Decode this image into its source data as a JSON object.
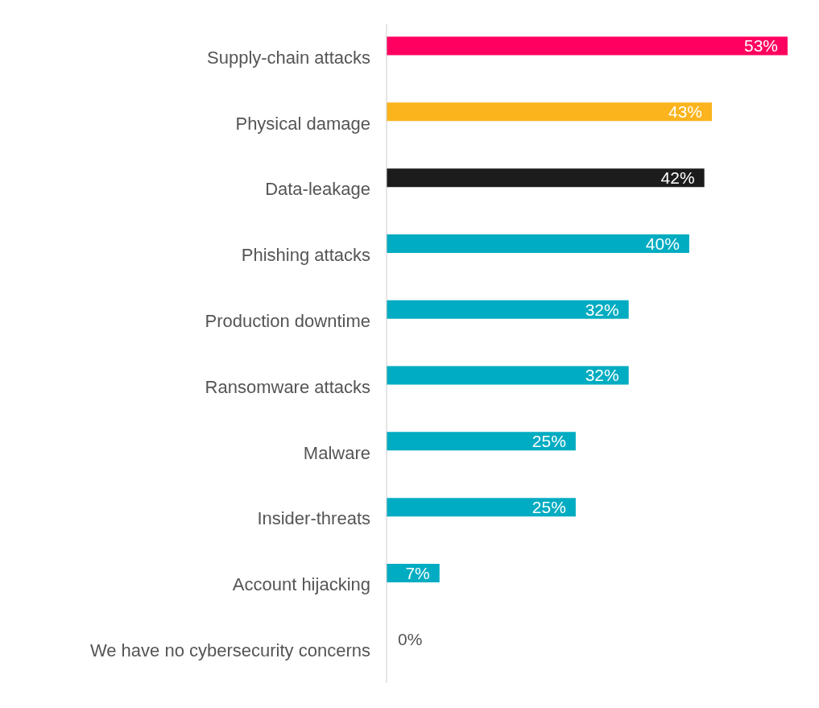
{
  "chart_data": {
    "type": "bar",
    "orientation": "horizontal",
    "categories": [
      "Supply-chain attacks",
      "Physical damage",
      "Data-leakage",
      "Phishing attacks",
      "Production downtime",
      "Ransomware attacks",
      "Malware",
      "Insider-threats",
      "Account hijacking",
      "We have no cybersecurity concerns"
    ],
    "values": [
      53,
      43,
      42,
      40,
      32,
      32,
      25,
      25,
      7,
      0
    ],
    "colors": [
      "#ff0060",
      "#fbb41e",
      "#1c1c1c",
      "#00acc1",
      "#00acc1",
      "#00acc1",
      "#00acc1",
      "#00acc1",
      "#00acc1",
      "#00acc1"
    ],
    "value_labels": [
      "53%",
      "43%",
      "42%",
      "40%",
      "32%",
      "32%",
      "25%",
      "25%",
      "7%",
      "0%"
    ],
    "tick_labels": "y",
    "grid": false
  }
}
